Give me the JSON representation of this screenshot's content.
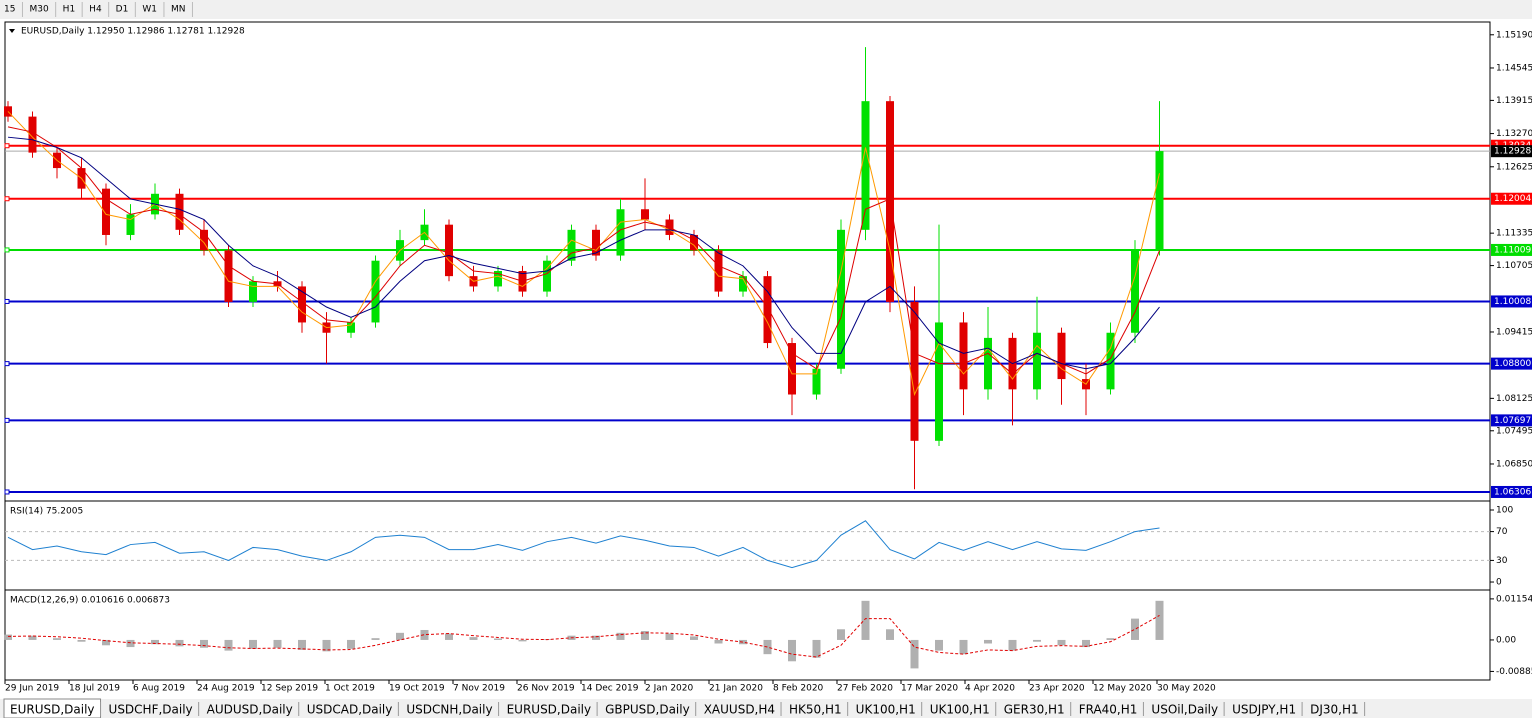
{
  "toolbar": [
    "15",
    "M30",
    "H1",
    "H4",
    "D1",
    "W1",
    "MN"
  ],
  "chart_data": [
    {
      "type": "candlestick",
      "title": "EURUSD,Daily 1.12950 1.12986 1.12781 1.12928",
      "open": [
        1.138,
        1.136,
        1.129,
        1.126,
        1.122,
        1.113,
        1.117,
        1.121,
        1.114,
        1.11,
        1.1,
        1.104,
        1.103,
        1.096,
        1.094,
        1.096,
        1.108,
        1.112,
        1.115,
        1.105,
        1.103,
        1.106,
        1.102,
        1.108,
        1.114,
        1.109,
        1.118,
        1.116,
        1.113,
        1.11,
        1.102,
        1.105,
        1.092,
        1.082,
        1.087,
        1.114,
        1.139,
        1.1,
        1.073,
        1.096,
        1.083,
        1.093,
        1.083,
        1.094,
        1.085,
        1.083,
        1.094,
        1.11
      ],
      "high": [
        1.139,
        1.137,
        1.13,
        1.128,
        1.123,
        1.119,
        1.123,
        1.122,
        1.116,
        1.111,
        1.105,
        1.106,
        1.104,
        1.098,
        1.097,
        1.109,
        1.114,
        1.118,
        1.116,
        1.107,
        1.107,
        1.107,
        1.109,
        1.115,
        1.115,
        1.12,
        1.124,
        1.117,
        1.114,
        1.111,
        1.106,
        1.106,
        1.093,
        1.088,
        1.116,
        1.1495,
        1.14,
        1.103,
        1.115,
        1.098,
        1.099,
        1.094,
        1.101,
        1.095,
        1.088,
        1.096,
        1.112,
        1.139
      ],
      "low": [
        1.135,
        1.128,
        1.124,
        1.12,
        1.111,
        1.112,
        1.116,
        1.113,
        1.109,
        1.099,
        1.099,
        1.102,
        1.094,
        1.088,
        1.093,
        1.095,
        1.107,
        1.111,
        1.104,
        1.102,
        1.102,
        1.101,
        1.101,
        1.107,
        1.108,
        1.108,
        1.114,
        1.112,
        1.109,
        1.101,
        1.101,
        1.091,
        1.078,
        1.081,
        1.086,
        1.112,
        1.098,
        1.0636,
        1.072,
        1.078,
        1.081,
        1.076,
        1.081,
        1.08,
        1.078,
        1.082,
        1.092,
        1.109
      ],
      "close": [
        1.136,
        1.129,
        1.126,
        1.122,
        1.113,
        1.117,
        1.121,
        1.114,
        1.11,
        1.1,
        1.104,
        1.103,
        1.096,
        1.094,
        1.096,
        1.108,
        1.112,
        1.115,
        1.105,
        1.103,
        1.106,
        1.102,
        1.108,
        1.114,
        1.109,
        1.118,
        1.116,
        1.113,
        1.11,
        1.102,
        1.105,
        1.092,
        1.082,
        1.087,
        1.114,
        1.139,
        1.1,
        1.073,
        1.096,
        1.083,
        1.093,
        1.083,
        1.094,
        1.085,
        1.083,
        1.094,
        1.11,
        1.1293
      ],
      "up_color": "#00e000",
      "down_color": "#e00000",
      "lines": [
        {
          "color": "#ff9900",
          "values": [
            1.137,
            1.132,
            1.1275,
            1.124,
            1.117,
            1.116,
            1.119,
            1.116,
            1.1115,
            1.104,
            1.103,
            1.103,
            1.098,
            1.095,
            1.0955,
            1.104,
            1.11,
            1.1135,
            1.108,
            1.104,
            1.105,
            1.103,
            1.1065,
            1.112,
            1.11,
            1.1155,
            1.116,
            1.114,
            1.111,
            1.105,
            1.1045,
            1.096,
            1.086,
            1.086,
            1.106,
            1.13,
            1.11,
            1.082,
            1.092,
            1.086,
            1.091,
            1.085,
            1.0915,
            1.087,
            1.084,
            1.091,
            1.105,
            1.125
          ]
        },
        {
          "color": "#dd0000",
          "values": [
            1.134,
            1.133,
            1.13,
            1.126,
            1.12,
            1.117,
            1.118,
            1.117,
            1.1135,
            1.107,
            1.104,
            1.1035,
            1.1,
            1.0965,
            1.096,
            1.101,
            1.107,
            1.111,
            1.1095,
            1.106,
            1.1055,
            1.104,
            1.1055,
            1.1095,
            1.1105,
            1.114,
            1.1155,
            1.1145,
            1.112,
            1.107,
            1.105,
            1.099,
            1.09,
            1.087,
            1.097,
            1.118,
            1.12,
            1.09,
            1.088,
            1.088,
            1.09,
            1.086,
            1.09,
            1.088,
            1.086,
            1.089,
            1.098,
            1.11
          ]
        },
        {
          "color": "#000080",
          "values": [
            1.132,
            1.1315,
            1.13,
            1.128,
            1.124,
            1.12,
            1.119,
            1.118,
            1.116,
            1.111,
            1.107,
            1.105,
            1.102,
            1.099,
            1.097,
            1.099,
            1.104,
            1.108,
            1.109,
            1.1075,
            1.1065,
            1.1055,
            1.106,
            1.1085,
            1.1095,
            1.112,
            1.114,
            1.114,
            1.113,
            1.1095,
            1.107,
            1.102,
            1.095,
            1.09,
            1.09,
            1.1,
            1.103,
            1.098,
            1.092,
            1.09,
            1.091,
            1.088,
            1.09,
            1.088,
            1.087,
            1.088,
            1.093,
            1.099
          ]
        }
      ],
      "levels": [
        {
          "value": 1.13034,
          "color": "#ff0000"
        },
        {
          "value": 1.12004,
          "color": "#ff0000"
        },
        {
          "value": 1.11009,
          "color": "#00dd00"
        },
        {
          "value": 1.10008,
          "color": "#0000cc"
        },
        {
          "value": 1.088,
          "label": "1.08800",
          "color": "#0000cc"
        },
        {
          "value": 1.07697,
          "color": "#0000cc"
        },
        {
          "value": 1.06306,
          "color": "#0000cc"
        }
      ],
      "last_price": 1.12928,
      "ylim": [
        1.0615,
        1.1538
      ],
      "yticks": [
        {
          "value": 1.1519,
          "label": "1.15190"
        },
        1.14545,
        1.13915,
        {
          "value": 1.1327,
          "label": "1.13270"
        },
        1.12625,
        1.11335,
        1.10705,
        1.09415,
        1.08125,
        1.07495,
        {
          "value": 1.0685,
          "label": "1.06850"
        }
      ],
      "x_labels": [
        "29 Jun 2019",
        "18 Jul 2019",
        "6 Aug 2019",
        "24 Aug 2019",
        "12 Sep 2019",
        "1 Oct 2019",
        "19 Oct 2019",
        "7 Nov 2019",
        "26 Nov 2019",
        "14 Dec 2019",
        "2 Jan 2020",
        "21 Jan 2020",
        "8 Feb 2020",
        "27 Feb 2020",
        "17 Mar 2020",
        "4 Apr 2020",
        "23 Apr 2020",
        "12 May 2020",
        "30 May 2020"
      ]
    },
    {
      "type": "line",
      "title": "RSI(14) 75.2005",
      "color": "#1e80d0",
      "values": [
        62,
        45,
        50,
        42,
        38,
        52,
        55,
        40,
        42,
        30,
        48,
        45,
        36,
        30,
        42,
        62,
        65,
        62,
        45,
        45,
        52,
        44,
        56,
        62,
        54,
        64,
        58,
        50,
        48,
        36,
        48,
        30,
        20,
        30,
        65,
        85,
        45,
        32,
        55,
        44,
        56,
        45,
        56,
        46,
        44,
        56,
        70,
        75
      ],
      "ylim": [
        -8.3,
        109.7
      ],
      "yticks": [
        100,
        70,
        30,
        0
      ],
      "dashed_levels": [
        70,
        30
      ]
    },
    {
      "type": "macd",
      "title": "MACD(12,26,9) 0.010616 0.006873",
      "hist_color": "#b0b0b0",
      "signal_color": "#e00000",
      "histogram": [
        0.0015,
        0.0012,
        0.0005,
        -0.0005,
        -0.0015,
        -0.002,
        -0.0012,
        -0.0018,
        -0.0022,
        -0.003,
        -0.0025,
        -0.0022,
        -0.0028,
        -0.0032,
        -0.0025,
        0.0005,
        0.002,
        0.0028,
        0.0018,
        0.0008,
        0.0004,
        -0.0004,
        0.0002,
        0.0012,
        0.0012,
        0.002,
        0.0025,
        0.0018,
        0.001,
        -0.001,
        -0.0012,
        -0.004,
        -0.006,
        -0.005,
        0.003,
        0.011,
        0.003,
        -0.008,
        -0.003,
        -0.004,
        -0.001,
        -0.003,
        -0.0005,
        -0.0015,
        -0.002,
        0.0005,
        0.006,
        0.011
      ],
      "signal": [
        0.001,
        0.0011,
        0.0009,
        0.0005,
        -0.0002,
        -0.0008,
        -0.001,
        -0.0012,
        -0.0016,
        -0.0022,
        -0.0024,
        -0.0023,
        -0.0025,
        -0.0028,
        -0.0027,
        -0.0015,
        0,
        0.0015,
        0.0018,
        0.0012,
        0.0007,
        0.0002,
        0.0001,
        0.0006,
        0.0009,
        0.0015,
        0.002,
        0.0019,
        0.0014,
        0.0002,
        -0.0006,
        -0.002,
        -0.004,
        -0.0048,
        -0.0015,
        0.006,
        0.006,
        -0.002,
        -0.0035,
        -0.004,
        -0.0028,
        -0.003,
        -0.0018,
        -0.0016,
        -0.0018,
        -0.0005,
        0.003,
        0.0069
      ],
      "ylim": [
        -0.0107,
        0.0132
      ],
      "yticks": [
        0.011544,
        {
          "value": 0,
          "label": "0.00"
        },
        {
          "value": -0.00885,
          "label": "-0.008850"
        }
      ]
    }
  ],
  "tabs": [
    "EURUSD,Daily",
    "USDCHF,Daily",
    "AUDUSD,Daily",
    "USDCAD,Daily",
    "USDCNH,Daily",
    "EURUSD,Daily",
    "GBPUSD,Daily",
    "XAUUSD,H4",
    "HK50,H1",
    "UK100,H1",
    "UK100,H1",
    "GER30,H1",
    "FRA40,H1",
    "USOil,Daily",
    "USDJPY,H1",
    "DJ30,H1"
  ]
}
